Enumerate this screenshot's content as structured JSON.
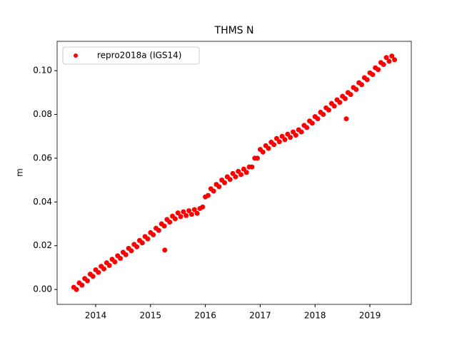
{
  "chart_data": {
    "type": "scatter",
    "title": "THMS N",
    "ylabel": "m",
    "xlim": [
      2013.297,
      2019.755
    ],
    "xticks": [
      2014,
      2015,
      2016,
      2017,
      2018,
      2019
    ],
    "ylim": [
      -0.0068,
      0.1134
    ],
    "yticks": [
      {
        "value": 0,
        "label": "0.00"
      },
      0.02,
      0.04,
      0.06,
      0.08,
      {
        "value": 0.1,
        "label": "0.10"
      }
    ],
    "legend": "upper left",
    "series": [
      {
        "name": "repro2018a (IGS14)",
        "color": "#ff0000",
        "x": [
          2013.6,
          2013.65,
          2013.7,
          2013.75,
          2013.8,
          2013.85,
          2013.9,
          2013.95,
          2014,
          2014.05,
          2014.1,
          2014.15,
          2014.2,
          2014.25,
          2014.3,
          2014.35,
          2014.4,
          2014.45,
          2014.5,
          2014.55,
          2014.6,
          2014.65,
          2014.7,
          2014.75,
          2014.8,
          2014.85,
          2014.9,
          2014.95,
          2015,
          2015.05,
          2015.1,
          2015.15,
          2015.2,
          2015.25,
          2015.3,
          2015.35,
          2015.4,
          2015.45,
          2015.5,
          2015.55,
          2015.6,
          2015.65,
          2015.7,
          2015.75,
          2015.8,
          2015.85,
          2015.9,
          2015.95,
          2016,
          2016.05,
          2016.1,
          2016.15,
          2016.2,
          2016.25,
          2016.3,
          2016.35,
          2016.4,
          2016.45,
          2016.5,
          2016.55,
          2016.6,
          2016.65,
          2016.7,
          2016.75,
          2016.8,
          2016.85,
          2016.9,
          2016.95,
          2017,
          2017.05,
          2017.1,
          2017.15,
          2017.2,
          2017.25,
          2017.3,
          2017.35,
          2017.4,
          2017.45,
          2017.5,
          2017.55,
          2017.6,
          2017.65,
          2017.7,
          2017.75,
          2017.8,
          2017.85,
          2017.9,
          2017.95,
          2018,
          2018.05,
          2018.1,
          2018.15,
          2018.2,
          2018.25,
          2018.3,
          2018.35,
          2018.4,
          2018.45,
          2018.5,
          2018.55,
          2018.6,
          2018.65,
          2018.7,
          2018.75,
          2018.8,
          2018.85,
          2018.9,
          2018.95,
          2019,
          2019.05,
          2019.1,
          2019.15,
          2019.2,
          2019.25,
          2019.3,
          2019.35,
          2019.4,
          2019.45,
          2015.26,
          2018.57
        ],
        "values": [
          0.001,
          0,
          0.003,
          0.002,
          0.005,
          0.004,
          0.007,
          0.006,
          0.009,
          0.0078,
          0.0106,
          0.0094,
          0.0122,
          0.011,
          0.0138,
          0.0126,
          0.0154,
          0.0142,
          0.017,
          0.0159,
          0.0188,
          0.0177,
          0.0206,
          0.0195,
          0.0224,
          0.0213,
          0.0242,
          0.0231,
          0.026,
          0.025,
          0.028,
          0.027,
          0.03,
          0.029,
          0.032,
          0.0308,
          0.0335,
          0.0323,
          0.035,
          0.0333,
          0.0355,
          0.0338,
          0.036,
          0.0343,
          0.0365,
          0.0348,
          0.037,
          0.0377,
          0.0423,
          0.043,
          0.046,
          0.045,
          0.048,
          0.047,
          0.05,
          0.0488,
          0.0515,
          0.0503,
          0.053,
          0.0515,
          0.054,
          0.0525,
          0.055,
          0.0535,
          0.056,
          0.056,
          0.06,
          0.06,
          0.064,
          0.0628,
          0.0657,
          0.0645,
          0.0673,
          0.0662,
          0.069,
          0.0675,
          0.07,
          0.0685,
          0.071,
          0.0695,
          0.072,
          0.0705,
          0.073,
          0.072,
          0.075,
          0.074,
          0.077,
          0.076,
          0.079,
          0.078,
          0.081,
          0.08,
          0.083,
          0.082,
          0.085,
          0.0838,
          0.0867,
          0.0855,
          0.0883,
          0.0872,
          0.09,
          0.0891,
          0.0923,
          0.0914,
          0.0945,
          0.0936,
          0.0968,
          0.0959,
          0.099,
          0.0982,
          0.1013,
          0.1005,
          0.1037,
          0.1028,
          0.106,
          0.1043,
          0.1067,
          0.105,
          0.018,
          0.078
        ]
      }
    ]
  }
}
